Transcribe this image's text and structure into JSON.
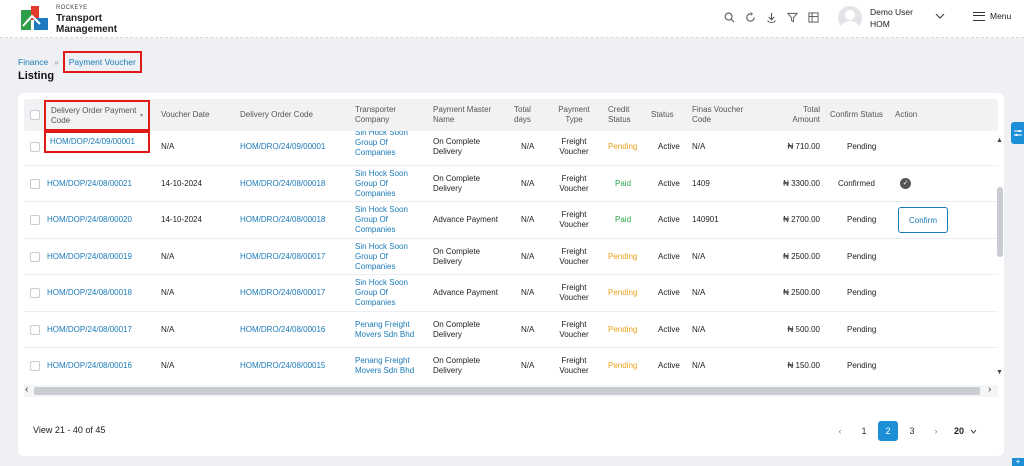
{
  "app": {
    "brand_small": "ROCKEYE",
    "brand_line1": "Transport",
    "brand_line2": "Management"
  },
  "header": {
    "user_name": "Demo User",
    "user_code": "HOM",
    "menu_label": "Menu",
    "icons": [
      "search-icon",
      "refresh-icon",
      "download-icon",
      "filter-icon",
      "columns-icon"
    ]
  },
  "breadcrumb": {
    "parent": "Finance",
    "current": "Payment Voucher"
  },
  "page_title": "Listing",
  "table": {
    "headers": {
      "code": "Delivery Order Payment Code",
      "voucher_date": "Voucher Date",
      "do_code": "Delivery Order Code",
      "transporter": "Transporter Company",
      "master": "Payment Master Name",
      "days": "Total days",
      "ptype": "Payment Type",
      "credit": "Credit Status",
      "status": "Status",
      "finas": "Finas Voucher Code",
      "amount": "Total Amount",
      "confirm": "Confirm Status",
      "action": "Action"
    },
    "rows": [
      {
        "code": "HOM/DOP/24/09/00001",
        "date": "N/A",
        "do": "HOM/DRO/24/09/00001",
        "transporter": "Sin Hock Soon Group Of Companies",
        "master": "On Complete Delivery",
        "days": "N/A",
        "ptype": "Freight Voucher",
        "credit": "Pending",
        "status": "Active",
        "finas": "N/A",
        "amount": "₦ 710.00",
        "confirm": "Pending"
      },
      {
        "code": "HOM/DOP/24/08/00021",
        "date": "14-10-2024",
        "do": "HOM/DRO/24/08/00018",
        "transporter": "Sin Hock Soon Group Of Companies",
        "master": "On Complete Delivery",
        "days": "N/A",
        "ptype": "Freight Voucher",
        "credit": "Paid",
        "status": "Active",
        "finas": "1409",
        "amount": "₦ 3300.00",
        "confirm": "Confirmed"
      },
      {
        "code": "HOM/DOP/24/08/00020",
        "date": "14-10-2024",
        "do": "HOM/DRO/24/08/00018",
        "transporter": "Sin Hock Soon Group Of Companies",
        "master": "Advance Payment",
        "days": "N/A",
        "ptype": "Freight Voucher",
        "credit": "Paid",
        "status": "Active",
        "finas": "140901",
        "amount": "₦ 2700.00",
        "confirm": "Pending",
        "action": "Confirm"
      },
      {
        "code": "HOM/DOP/24/08/00019",
        "date": "N/A",
        "do": "HOM/DRO/24/08/00017",
        "transporter": "Sin Hock Soon Group Of Companies",
        "master": "On Complete Delivery",
        "days": "N/A",
        "ptype": "Freight Voucher",
        "credit": "Pending",
        "status": "Active",
        "finas": "N/A",
        "amount": "₦ 2500.00",
        "confirm": "Pending"
      },
      {
        "code": "HOM/DOP/24/08/00018",
        "date": "N/A",
        "do": "HOM/DRO/24/08/00017",
        "transporter": "Sin Hock Soon Group Of Companies",
        "master": "Advance Payment",
        "days": "N/A",
        "ptype": "Freight Voucher",
        "credit": "Pending",
        "status": "Active",
        "finas": "N/A",
        "amount": "₦ 2500.00",
        "confirm": "Pending"
      },
      {
        "code": "HOM/DOP/24/08/00017",
        "date": "N/A",
        "do": "HOM/DRO/24/08/00016",
        "transporter": "Penang Freight Movers Sdn Bhd",
        "master": "On Complete Delivery",
        "days": "N/A",
        "ptype": "Freight Voucher",
        "credit": "Pending",
        "status": "Active",
        "finas": "N/A",
        "amount": "₦ 500.00",
        "confirm": "Pending"
      },
      {
        "code": "HOM/DOP/24/08/00016",
        "date": "N/A",
        "do": "HOM/DRO/24/08/00015",
        "transporter": "Penang Freight Movers Sdn Bhd",
        "master": "On Complete Delivery",
        "days": "N/A",
        "ptype": "Freight Voucher",
        "credit": "Pending",
        "status": "Active",
        "finas": "N/A",
        "amount": "₦ 150.00",
        "confirm": "Pending"
      }
    ]
  },
  "footer": {
    "range": "View 21 - 40 of 45",
    "pages": [
      "1",
      "2",
      "3"
    ],
    "current_page": "2",
    "page_size": "20"
  },
  "colors": {
    "accent": "#1d8fd6",
    "link": "#1a7ab8",
    "pending": "#e8a21c",
    "paid": "#2aa84a",
    "highlight": "#e01818"
  }
}
